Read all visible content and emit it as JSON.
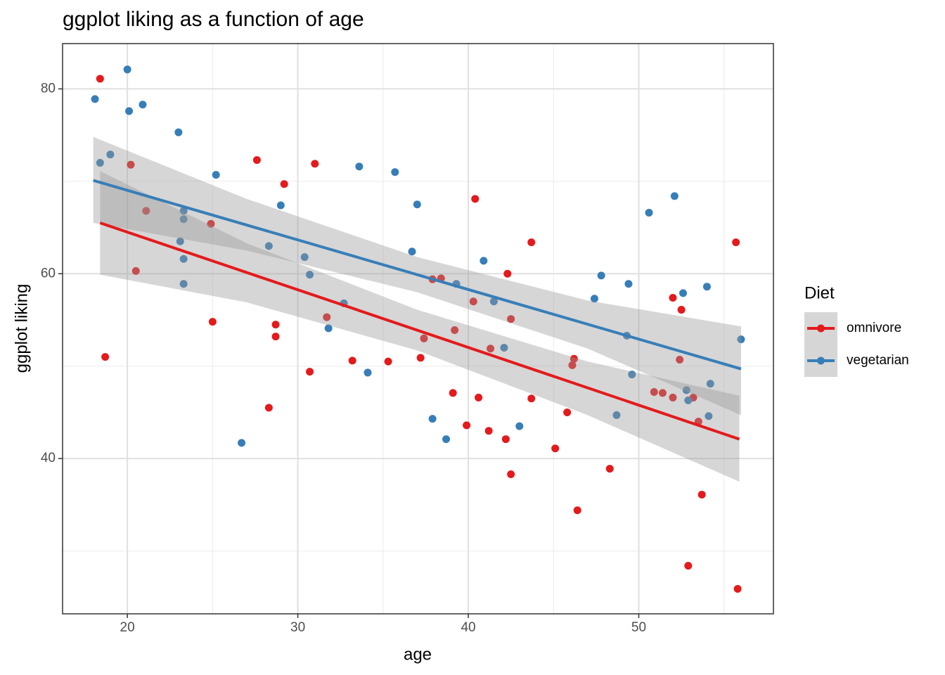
{
  "chart_data": {
    "type": "scatter",
    "title": "ggplot liking as a function of age",
    "xlabel": "age",
    "ylabel": "ggplot liking",
    "legend_title": "Diet",
    "legend": "right",
    "grid": true,
    "xlim": [
      16.2,
      57.9
    ],
    "ylim": [
      23.2,
      84.9
    ],
    "xticks": [
      20,
      30,
      40,
      50
    ],
    "yticks": [
      40,
      60,
      80
    ],
    "xminor": [
      25,
      35,
      45,
      55
    ],
    "yminor": [
      30,
      50,
      70
    ],
    "series": [
      {
        "name": "omnivore",
        "color": "#e41a1c",
        "x": [
          18.4,
          18.7,
          20.2,
          21.1,
          20.5,
          24.9,
          25.0,
          27.6,
          29.2,
          28.7,
          28.7,
          28.3,
          31.0,
          30.7,
          31.7,
          33.2,
          35.3,
          37.2,
          37.4,
          37.9,
          38.4,
          39.2,
          39.1,
          40.4,
          40.3,
          40.6,
          39.9,
          41.2,
          41.3,
          42.3,
          42.5,
          42.2,
          42.5,
          43.7,
          43.7,
          45.1,
          45.8,
          46.1,
          46.2,
          46.4,
          48.3,
          50.9,
          51.4,
          52.0,
          52.0,
          52.4,
          52.5,
          53.2,
          53.5,
          53.7,
          52.9,
          55.7,
          55.8
        ],
        "y": [
          81.1,
          51.0,
          71.8,
          66.8,
          60.3,
          65.4,
          54.8,
          72.3,
          69.7,
          54.5,
          53.2,
          45.5,
          71.9,
          49.4,
          55.3,
          50.6,
          50.5,
          50.9,
          53.0,
          59.4,
          59.5,
          53.9,
          47.1,
          68.1,
          57.0,
          46.6,
          43.6,
          43.0,
          51.9,
          60.0,
          55.1,
          42.1,
          38.3,
          63.4,
          46.5,
          41.1,
          45.0,
          50.1,
          50.8,
          34.4,
          38.9,
          47.2,
          47.1,
          57.4,
          46.6,
          50.7,
          56.1,
          46.6,
          44.0,
          36.1,
          28.4,
          63.4,
          25.9
        ],
        "fit": {
          "x": [
            18.4,
            55.9
          ],
          "y": [
            65.5,
            42.1
          ]
        },
        "band": {
          "x": [
            18.4,
            27,
            37,
            47,
            55.9
          ],
          "upper": [
            71.1,
            63.3,
            56.1,
            50.5,
            46.8
          ],
          "lower": [
            59.9,
            56.9,
            51.7,
            44.7,
            37.5
          ]
        }
      },
      {
        "name": "vegetarian",
        "color": "#377eb8",
        "x": [
          18.1,
          18.4,
          19.0,
          20.0,
          20.1,
          20.9,
          23.0,
          23.3,
          23.3,
          23.1,
          23.3,
          23.3,
          25.2,
          26.7,
          28.3,
          29.0,
          30.4,
          30.7,
          31.8,
          32.7,
          33.6,
          34.1,
          35.7,
          36.7,
          37.0,
          37.9,
          38.7,
          39.3,
          40.9,
          41.5,
          42.1,
          43.0,
          47.4,
          47.8,
          48.7,
          49.4,
          49.3,
          49.6,
          50.6,
          52.1,
          52.6,
          52.8,
          52.9,
          54.0,
          54.2,
          54.1,
          56.0
        ],
        "y": [
          78.9,
          72.0,
          72.9,
          82.1,
          77.6,
          78.3,
          75.3,
          66.8,
          65.9,
          63.5,
          61.6,
          58.9,
          70.7,
          41.7,
          63.0,
          67.4,
          61.8,
          59.9,
          54.1,
          56.8,
          71.6,
          49.3,
          71.0,
          62.4,
          67.5,
          44.3,
          42.1,
          58.9,
          61.4,
          57.0,
          52.0,
          43.5,
          57.3,
          59.8,
          44.7,
          58.9,
          53.3,
          49.1,
          66.6,
          68.4,
          57.9,
          47.4,
          46.3,
          58.6,
          48.1,
          44.6,
          52.9
        ],
        "fit": {
          "x": [
            18.0,
            56.0
          ],
          "y": [
            70.1,
            49.7
          ]
        },
        "band": {
          "x": [
            18.0,
            27,
            37,
            47,
            56.0
          ],
          "upper": [
            74.8,
            68.1,
            61.8,
            57.1,
            54.3
          ],
          "lower": [
            65.5,
            62.5,
            58.0,
            51.9,
            44.7
          ]
        }
      }
    ]
  }
}
